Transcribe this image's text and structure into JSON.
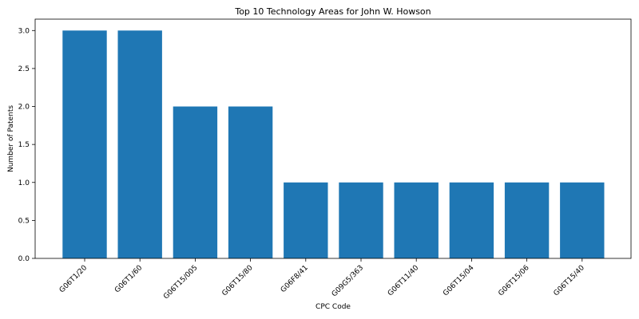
{
  "chart_data": {
    "type": "bar",
    "title": "Top 10 Technology Areas for John W. Howson",
    "xlabel": "CPC Code",
    "ylabel": "Number of Patents",
    "categories": [
      "G06T1/20",
      "G06T1/60",
      "G06T15/005",
      "G06T15/80",
      "G06F8/41",
      "G09G5/363",
      "G06T11/40",
      "G06T15/04",
      "G06T15/06",
      "G06T15/40"
    ],
    "values": [
      3,
      3,
      2,
      2,
      1,
      1,
      1,
      1,
      1,
      1
    ],
    "ylim": [
      0,
      3.15
    ],
    "yticks": [
      "0.0",
      "0.5",
      "1.0",
      "1.5",
      "2.0",
      "2.5",
      "3.0"
    ],
    "bar_color": "#1f77b4",
    "grid": false,
    "legend": "none"
  }
}
